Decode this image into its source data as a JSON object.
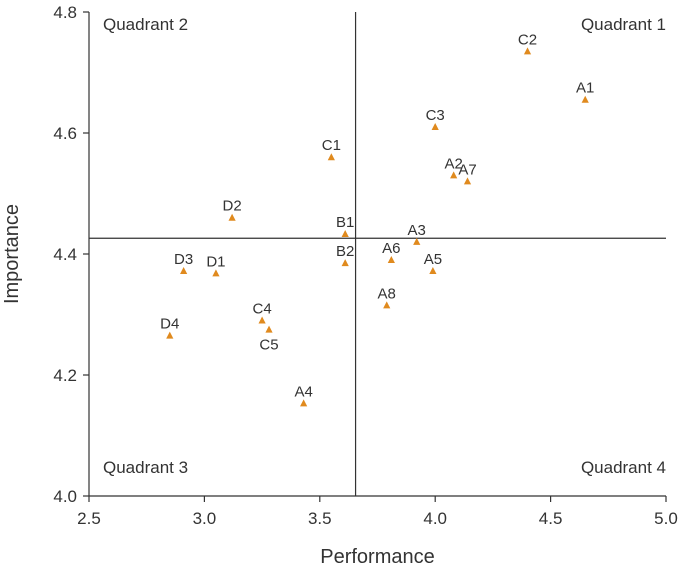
{
  "chart_data": {
    "type": "scatter",
    "title": "",
    "xlabel": "Performance",
    "ylabel": "Importance",
    "xlim": [
      2.5,
      5.0
    ],
    "ylim": [
      4.0,
      4.8
    ],
    "xticks": [
      "2.5",
      "3.0",
      "3.5",
      "4.0",
      "4.5",
      "5.0"
    ],
    "yticks": [
      "4.0",
      "4.2",
      "4.4",
      "4.6",
      "4.8"
    ],
    "xtick_values": [
      2.5,
      3.0,
      3.5,
      4.0,
      4.5,
      5.0
    ],
    "ytick_values": [
      4.0,
      4.2,
      4.4,
      4.6,
      4.8
    ],
    "mean_lines": {
      "x": 3.655,
      "y": 4.426
    },
    "quadrants": {
      "q1": "Quadrant 1",
      "q2": "Quadrant 2",
      "q3": "Quadrant 3",
      "q4": "Quadrant 4"
    },
    "marker_color": "#e08a1e",
    "points": [
      {
        "label": "A1",
        "x": 4.65,
        "y": 4.655
      },
      {
        "label": "A2",
        "x": 4.08,
        "y": 4.53
      },
      {
        "label": "A3",
        "x": 3.92,
        "y": 4.42
      },
      {
        "label": "A4",
        "x": 3.43,
        "y": 4.153
      },
      {
        "label": "A5",
        "x": 3.99,
        "y": 4.372
      },
      {
        "label": "A6",
        "x": 3.81,
        "y": 4.39
      },
      {
        "label": "A7",
        "x": 4.14,
        "y": 4.52
      },
      {
        "label": "A8",
        "x": 3.79,
        "y": 4.315
      },
      {
        "label": "B1",
        "x": 3.61,
        "y": 4.433
      },
      {
        "label": "B2",
        "x": 3.61,
        "y": 4.385
      },
      {
        "label": "C1",
        "x": 3.55,
        "y": 4.56
      },
      {
        "label": "C2",
        "x": 4.4,
        "y": 4.735
      },
      {
        "label": "C3",
        "x": 4.0,
        "y": 4.61
      },
      {
        "label": "C4",
        "x": 3.25,
        "y": 4.29
      },
      {
        "label": "C5",
        "x": 3.28,
        "y": 4.275
      },
      {
        "label": "D1",
        "x": 3.05,
        "y": 4.368
      },
      {
        "label": "D2",
        "x": 3.12,
        "y": 4.46
      },
      {
        "label": "D3",
        "x": 2.91,
        "y": 4.372
      },
      {
        "label": "D4",
        "x": 2.85,
        "y": 4.265
      }
    ]
  }
}
